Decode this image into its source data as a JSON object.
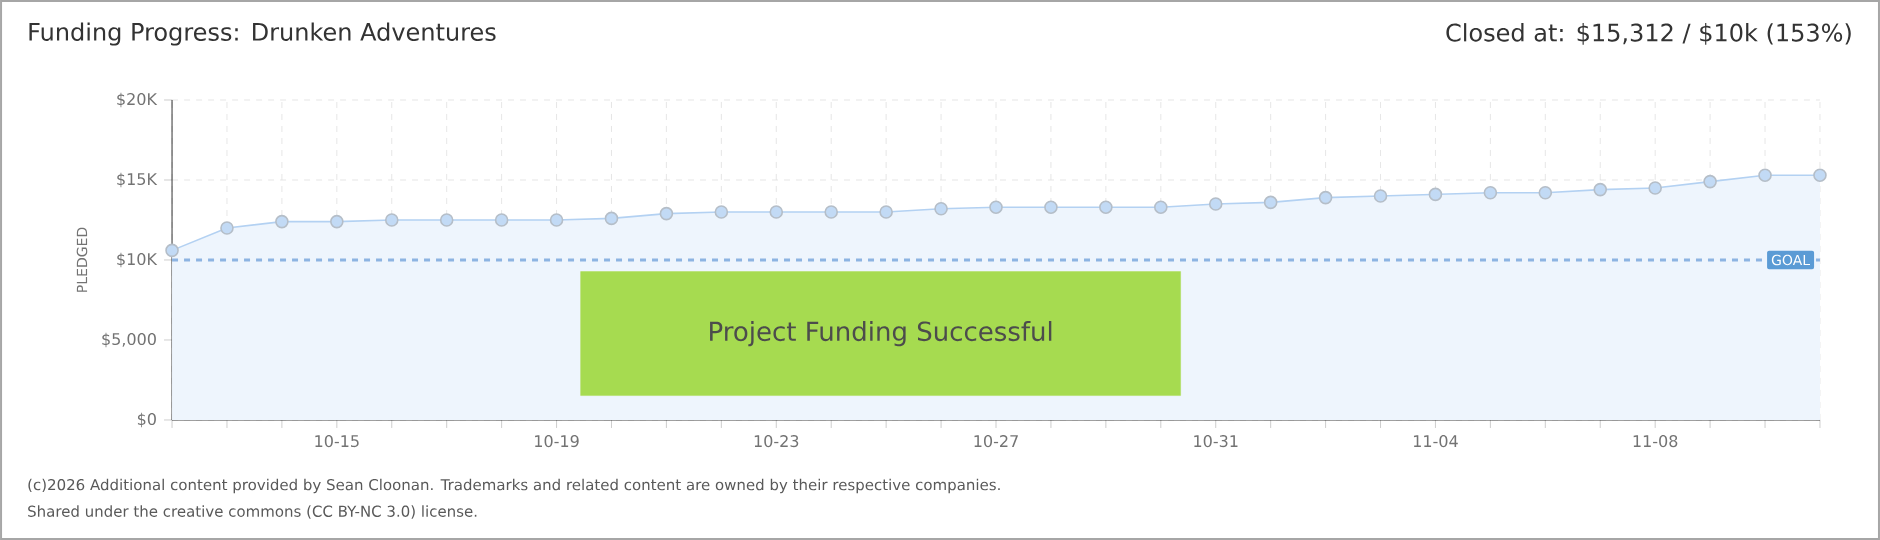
{
  "chart_data": {
    "type": "area",
    "title": "Funding Progress: Drunken Adventures",
    "subtitle": "Closed at: $15,312 / $10k (153%)",
    "ylabel": "PLEDGED",
    "categories": [
      null,
      null,
      null,
      "10-15",
      null,
      null,
      null,
      "10-19",
      null,
      null,
      null,
      "10-23",
      null,
      null,
      null,
      "10-27",
      null,
      null,
      null,
      "10-31",
      null,
      null,
      null,
      "11-04",
      null,
      null,
      null,
      "11-08",
      null,
      null,
      null
    ],
    "series": [
      {
        "color": "#b3d1f2",
        "values": [
          10600,
          12000,
          12400,
          12400,
          12500,
          12500,
          12500,
          12500,
          12600,
          12900,
          13000,
          13000,
          13000,
          13000,
          13200,
          13300,
          13300,
          13300,
          13300,
          13500,
          13600,
          13900,
          14000,
          14100,
          14200,
          14200,
          14400,
          14500,
          14900,
          15300,
          15300
        ]
      }
    ],
    "ylim": [
      0,
      20000
    ],
    "yticks": [
      {
        "value": 0,
        "label": "$0"
      },
      {
        "value": 5000,
        "label": "$5,000"
      },
      {
        "value": 10000,
        "label": "$10K"
      },
      {
        "value": 15000,
        "label": "$15K"
      },
      {
        "value": 20000,
        "label": "$20K"
      }
    ],
    "grid": true,
    "marker": "circle",
    "ref_lines": [
      {
        "axis": "y",
        "value": 10000,
        "label": "GOAL",
        "color": "#8db4e2",
        "line_style": "dashed"
      }
    ],
    "annotations": [
      "Project Funding Successful",
      "(c)2026 Additional content provided by Sean Cloonan. Trademarks and related content are owned by their respective companies.",
      "Shared under the creative commons (CC BY-NC 3.0) license."
    ]
  }
}
